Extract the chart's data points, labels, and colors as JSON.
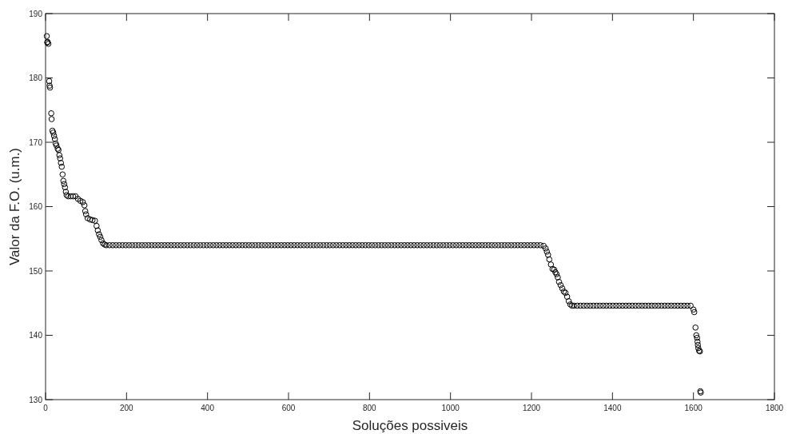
{
  "chart_data": {
    "type": "scatter",
    "xlabel": "Soluções possiveis",
    "ylabel": "Valor da F.O. (u.m.)",
    "xlim": [
      0,
      1800
    ],
    "ylim": [
      130,
      190
    ],
    "xticks": [
      0,
      200,
      400,
      600,
      800,
      1000,
      1200,
      1400,
      1600,
      1800
    ],
    "yticks": [
      130,
      140,
      150,
      160,
      170,
      180,
      190
    ],
    "grid": false,
    "marker": "circle",
    "series": [
      {
        "color": "#000000",
        "x": [
          3,
          4,
          5,
          7,
          9,
          10,
          11,
          14,
          15,
          17,
          19,
          21,
          23,
          25,
          27,
          30,
          32,
          34,
          36,
          38,
          40,
          42,
          44,
          46,
          48,
          50,
          52,
          56,
          62,
          68,
          74,
          80,
          86,
          92,
          96,
          98,
          100,
          104,
          110,
          116,
          122,
          126,
          129,
          132,
          135,
          138,
          142,
          146
        ],
        "values": [
          186.5,
          185.5,
          185.6,
          185.3,
          179.5,
          178.8,
          178.5,
          174.5,
          173.6,
          171.8,
          171.5,
          171,
          170.5,
          169.8,
          169.5,
          169,
          168.8,
          168,
          167.5,
          166.8,
          166.2,
          165,
          164,
          163.5,
          163,
          162.3,
          161.8,
          161.6,
          161.6,
          161.6,
          161.6,
          161.2,
          160.9,
          160.7,
          160.2,
          159.3,
          158.8,
          158.2,
          158,
          157.9,
          157.8,
          157,
          156.3,
          155.7,
          155.3,
          154.8,
          154.3,
          154.1
        ]
      },
      {
        "color": "#000000",
        "x": [
          150,
          158,
          166,
          174,
          182,
          190,
          198,
          206,
          214,
          222,
          230,
          238,
          246,
          254,
          262,
          270,
          278,
          286,
          294,
          302,
          310,
          318,
          326,
          334,
          342,
          350,
          358,
          366,
          374,
          382,
          390,
          398,
          406,
          414,
          422,
          430,
          438,
          446,
          454,
          462,
          470,
          478,
          486,
          494,
          502,
          510,
          518,
          526,
          534,
          542,
          550,
          558,
          566,
          574,
          582,
          590,
          598,
          606,
          614,
          622,
          630,
          638,
          646,
          654,
          662,
          670,
          678,
          686,
          694,
          702,
          710,
          718,
          726,
          734,
          742,
          750,
          758,
          766,
          774,
          782,
          790,
          798,
          806,
          814,
          822,
          830,
          838,
          846,
          854,
          862,
          870,
          878,
          886,
          894,
          902,
          910,
          918,
          926,
          934,
          942,
          950,
          958,
          966,
          974,
          982,
          990,
          998,
          1006,
          1014,
          1022,
          1030,
          1038,
          1046,
          1054,
          1062,
          1070,
          1078,
          1086,
          1094,
          1102,
          1110,
          1118,
          1126,
          1134,
          1142,
          1150,
          1158,
          1166,
          1174,
          1182,
          1190,
          1198,
          1206,
          1214,
          1222
        ],
        "values": [
          154,
          154,
          154,
          154,
          154,
          154,
          154,
          154,
          154,
          154,
          154,
          154,
          154,
          154,
          154,
          154,
          154,
          154,
          154,
          154,
          154,
          154,
          154,
          154,
          154,
          154,
          154,
          154,
          154,
          154,
          154,
          154,
          154,
          154,
          154,
          154,
          154,
          154,
          154,
          154,
          154,
          154,
          154,
          154,
          154,
          154,
          154,
          154,
          154,
          154,
          154,
          154,
          154,
          154,
          154,
          154,
          154,
          154,
          154,
          154,
          154,
          154,
          154,
          154,
          154,
          154,
          154,
          154,
          154,
          154,
          154,
          154,
          154,
          154,
          154,
          154,
          154,
          154,
          154,
          154,
          154,
          154,
          154,
          154,
          154,
          154,
          154,
          154,
          154,
          154,
          154,
          154,
          154,
          154,
          154,
          154,
          154,
          154,
          154,
          154,
          154,
          154,
          154,
          154,
          154,
          154,
          154,
          154,
          154,
          154,
          154,
          154,
          154,
          154,
          154,
          154,
          154,
          154,
          154,
          154,
          154,
          154,
          154,
          154,
          154,
          154,
          154,
          154,
          154,
          154,
          154,
          154,
          154,
          154,
          154
        ]
      },
      {
        "color": "#000000",
        "x": [
          1230,
          1235,
          1238,
          1241,
          1244,
          1248,
          1252,
          1256,
          1259,
          1262,
          1265,
          1268,
          1272,
          1276,
          1280,
          1284,
          1288,
          1292,
          1296,
          1300
        ],
        "values": [
          153.9,
          153.5,
          153,
          152.5,
          151.8,
          151,
          150.3,
          150.2,
          149.8,
          149.5,
          149,
          148.3,
          147.8,
          147.3,
          146.8,
          146.6,
          146,
          145.3,
          144.8,
          144.6
        ]
      },
      {
        "color": "#000000",
        "x": [
          1305,
          1313,
          1321,
          1329,
          1337,
          1345,
          1353,
          1361,
          1369,
          1377,
          1385,
          1393,
          1401,
          1409,
          1417,
          1425,
          1433,
          1441,
          1449,
          1457,
          1465,
          1473,
          1481,
          1489,
          1497,
          1505,
          1513,
          1521,
          1529,
          1537,
          1545,
          1553,
          1561,
          1569,
          1577,
          1585,
          1593
        ],
        "values": [
          144.6,
          144.6,
          144.6,
          144.6,
          144.6,
          144.6,
          144.6,
          144.6,
          144.6,
          144.6,
          144.6,
          144.6,
          144.6,
          144.6,
          144.6,
          144.6,
          144.6,
          144.6,
          144.6,
          144.6,
          144.6,
          144.6,
          144.6,
          144.6,
          144.6,
          144.6,
          144.6,
          144.6,
          144.6,
          144.6,
          144.6,
          144.6,
          144.6,
          144.6,
          144.6,
          144.6,
          144.6
        ]
      },
      {
        "color": "#000000",
        "x": [
          1600,
          1602,
          1605,
          1607,
          1609,
          1610,
          1611,
          1612,
          1614,
          1616,
          1617,
          1618
        ],
        "values": [
          144,
          143.6,
          141.2,
          140,
          139.6,
          139,
          138.5,
          138,
          137.6,
          137.5,
          131.3,
          131.1
        ]
      }
    ]
  }
}
